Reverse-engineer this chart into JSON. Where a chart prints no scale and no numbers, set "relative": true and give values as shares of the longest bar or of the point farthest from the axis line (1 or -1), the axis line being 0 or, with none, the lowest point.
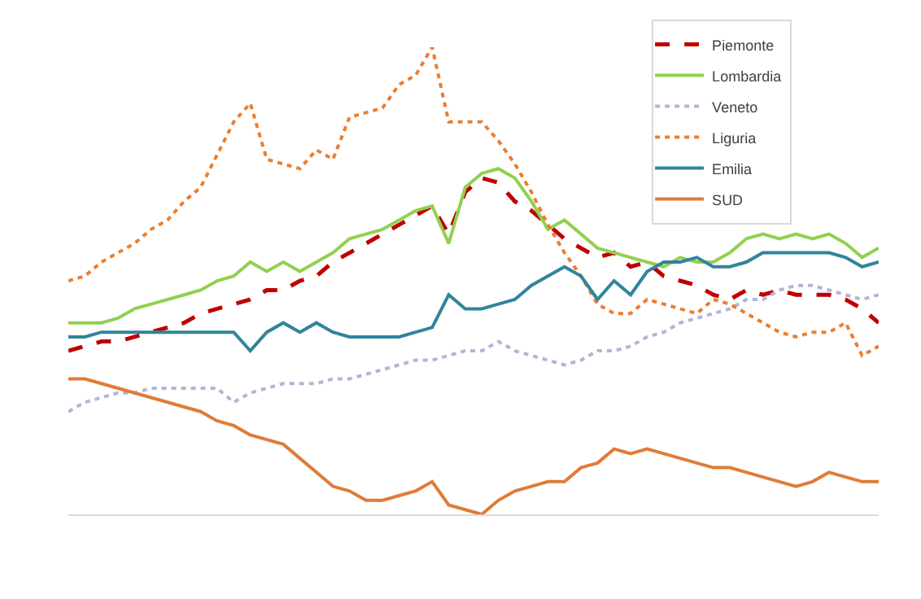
{
  "chart_data": {
    "type": "line",
    "relative": true,
    "categories": [
      null,
      null,
      null,
      null,
      null,
      null,
      null,
      null,
      null,
      null,
      null,
      null,
      null,
      null,
      null,
      null,
      null,
      null,
      null,
      null,
      null,
      null,
      null,
      null,
      null,
      null,
      null,
      null,
      null,
      null,
      null,
      null,
      null,
      null,
      null,
      null,
      null,
      null,
      null,
      null,
      null,
      null,
      null,
      null,
      null,
      null,
      null,
      null,
      null,
      null
    ],
    "series": [
      {
        "name": "Piemonte",
        "color": "#c00000",
        "line_style": "dashed",
        "values": [
          0.35,
          0.36,
          0.37,
          0.37,
          0.38,
          0.39,
          0.4,
          0.41,
          0.43,
          0.44,
          0.45,
          0.46,
          0.48,
          0.48,
          0.5,
          0.51,
          0.54,
          0.56,
          0.58,
          0.6,
          0.62,
          0.64,
          0.66,
          0.6,
          0.69,
          0.72,
          0.71,
          0.67,
          0.65,
          0.62,
          0.59,
          0.57,
          0.55,
          0.56,
          0.53,
          0.54,
          0.51,
          0.5,
          0.49,
          0.47,
          0.46,
          0.48,
          0.47,
          0.48,
          0.47,
          0.47,
          0.47,
          0.46,
          0.44,
          0.41
        ]
      },
      {
        "name": "Lombardia",
        "color": "#92d050",
        "line_style": "solid",
        "values": [
          0.41,
          0.41,
          0.41,
          0.42,
          0.44,
          0.45,
          0.46,
          0.47,
          0.48,
          0.5,
          0.51,
          0.54,
          0.52,
          0.54,
          0.52,
          0.54,
          0.56,
          0.59,
          0.6,
          0.61,
          0.63,
          0.65,
          0.66,
          0.58,
          0.7,
          0.73,
          0.74,
          0.72,
          0.67,
          0.61,
          0.63,
          0.6,
          0.57,
          0.56,
          0.55,
          0.54,
          0.53,
          0.55,
          0.54,
          0.54,
          0.56,
          0.59,
          0.6,
          0.59,
          0.6,
          0.59,
          0.6,
          0.58,
          0.55,
          0.57
        ]
      },
      {
        "name": "Veneto",
        "color": "#b4b4d8",
        "line_style": "dotted",
        "values": [
          0.22,
          0.24,
          0.25,
          0.26,
          0.26,
          0.27,
          0.27,
          0.27,
          0.27,
          0.27,
          0.24,
          0.26,
          0.27,
          0.28,
          0.28,
          0.28,
          0.29,
          0.29,
          0.3,
          0.31,
          0.32,
          0.33,
          0.33,
          0.34,
          0.35,
          0.35,
          0.37,
          0.35,
          0.34,
          0.33,
          0.32,
          0.33,
          0.35,
          0.35,
          0.36,
          0.38,
          0.39,
          0.41,
          0.42,
          0.43,
          0.44,
          0.46,
          0.46,
          0.48,
          0.49,
          0.49,
          0.48,
          0.47,
          0.46,
          0.47
        ]
      },
      {
        "name": "Liguria",
        "color": "#ed7d31",
        "line_style": "dotted",
        "values": [
          0.5,
          0.51,
          0.54,
          0.56,
          0.58,
          0.61,
          0.63,
          0.67,
          0.7,
          0.77,
          0.84,
          0.88,
          0.76,
          0.75,
          0.74,
          0.78,
          0.76,
          0.85,
          0.86,
          0.87,
          0.92,
          0.94,
          1,
          0.84,
          0.84,
          0.84,
          0.8,
          0.75,
          0.69,
          0.62,
          0.56,
          0.51,
          0.45,
          0.43,
          0.43,
          0.46,
          0.45,
          0.44,
          0.43,
          0.46,
          0.45,
          0.43,
          0.41,
          0.39,
          0.38,
          0.39,
          0.39,
          0.41,
          0.34,
          0.36
        ]
      },
      {
        "name": "Emilia",
        "color": "#31849b",
        "line_style": "solid",
        "values": [
          0.38,
          0.38,
          0.39,
          0.39,
          0.39,
          0.39,
          0.39,
          0.39,
          0.39,
          0.39,
          0.39,
          0.35,
          0.39,
          0.41,
          0.39,
          0.41,
          0.39,
          0.38,
          0.38,
          0.38,
          0.38,
          0.39,
          0.4,
          0.47,
          0.44,
          0.44,
          0.45,
          0.46,
          0.49,
          0.51,
          0.53,
          0.51,
          0.46,
          0.5,
          0.47,
          0.52,
          0.54,
          0.54,
          0.55,
          0.53,
          0.53,
          0.54,
          0.56,
          0.56,
          0.56,
          0.56,
          0.56,
          0.55,
          0.53,
          0.54
        ]
      },
      {
        "name": "SUD",
        "color": "#e07b39",
        "line_style": "solid",
        "values": [
          0.29,
          0.29,
          0.28,
          0.27,
          0.26,
          0.25,
          0.24,
          0.23,
          0.22,
          0.2,
          0.19,
          0.17,
          0.16,
          0.15,
          0.12,
          0.09,
          0.06,
          0.05,
          0.03,
          0.03,
          0.04,
          0.05,
          0.07,
          0.02,
          0.01,
          0,
          0.03,
          0.05,
          0.06,
          0.07,
          0.07,
          0.1,
          0.11,
          0.14,
          0.13,
          0.14,
          0.13,
          0.12,
          0.11,
          0.1,
          0.1,
          0.09,
          0.08,
          0.07,
          0.06,
          0.07,
          0.09,
          0.08,
          0.07,
          0.07
        ]
      }
    ],
    "legend": "top right",
    "marker": "none"
  }
}
